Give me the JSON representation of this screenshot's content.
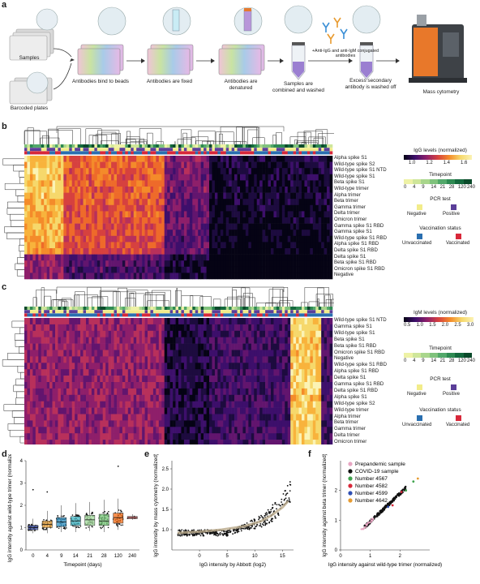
{
  "panel_labels": {
    "a": "a",
    "b": "b",
    "c": "c",
    "d": "d",
    "e": "e",
    "f": "f"
  },
  "workflow": {
    "samples": "Samples",
    "barcoded_plates": "Barcoded plates",
    "step1": "Antibodies bind to beads",
    "step2": "Antibodies are fixed",
    "step3": "Antibodies are denatured",
    "step4": "Samples are combined and washed",
    "reagent": "+Anti-IgG and anti-IgM conjugated antibodies",
    "step5": "Excess secondary antibody is washed off",
    "step6": "Mass cytometry"
  },
  "heatmap_b": {
    "annotation_rows": [
      "Timepoint",
      "PCR test",
      "Vaccination status"
    ],
    "rows": [
      "Alpha spike S1",
      "Wild-type spike S2",
      "Wild-type spike S1 NTD",
      "Wild-type spike S1",
      "Beta spike S1",
      "Wild-type trimer",
      "Alpha trimer",
      "Beta trimer",
      "Gamma trimer",
      "Delta trimer",
      "Omicron trimer",
      "Gamma spike S1 RBD",
      "Gamma spike S1",
      "Wild-type spike S1 RBD",
      "Alpha spike S1 RBD",
      "Delta spike S1 RBD",
      "Delta spike S1",
      "Beta spike S1 RBD",
      "Omicron spike S1 RBD",
      "Negative"
    ],
    "legend_title": "IgG levels (normalized)",
    "legend_ticks": [
      "1.0",
      "1.2",
      "1.4",
      "1.6"
    ]
  },
  "heatmap_c": {
    "annotation_rows": [
      "Timepoint",
      "PCR test",
      "Vaccination status"
    ],
    "rows": [
      "Wild-type spike S1 NTD",
      "Gamma spike S1",
      "Wild-type spike S1",
      "Beta spike S1",
      "Beta spike S1 RBD",
      "Omicron spike S1 RBD",
      "Negative",
      "Wild-type spike S1 RBD",
      "Alpha spike S1 RBD",
      "Delta spike S1",
      "Gamma spike S1 RBD",
      "Delta spike S1 RBD",
      "Alpha spike S1",
      "Wild-type spike S2",
      "Wild-type trimer",
      "Alpha trimer",
      "Beta trimer",
      "Gamma trimer",
      "Delta trimer",
      "Omicron trimer"
    ],
    "legend_title": "IgM levels (normalized)",
    "legend_ticks": [
      "0.5",
      "1.0",
      "1.5",
      "2.0",
      "2.5",
      "3.0"
    ]
  },
  "legends": {
    "timepoint_title": "Timepoint",
    "timepoint_ticks": [
      "0",
      "4",
      "9",
      "14",
      "21",
      "28",
      "120",
      "240"
    ],
    "timepoint_colors": [
      "#eef2a6",
      "#cfe69a",
      "#a9d68c",
      "#7fc27c",
      "#52a86a",
      "#2e8a52",
      "#14693d",
      "#0a4a2a"
    ],
    "pcr_title": "PCR test",
    "pcr_negative": "Negative",
    "pcr_positive": "Positive",
    "pcr_negative_color": "#f2ec8a",
    "pcr_positive_color": "#5b3f99",
    "vacc_title": "Vaccination status",
    "vacc_unvaccinated": "Unvaccinated",
    "vacc_vaccinated": "Vaccinated",
    "vacc_unvaccinated_color": "#2a6fb0",
    "vacc_vaccinated_color": "#d8283a"
  },
  "chart_data": [
    {
      "type": "box",
      "panel": "d",
      "xlabel": "Timepoint (days)",
      "ylabel": "IgG intensity against wild-type trimer (normalized)",
      "categories": [
        "0",
        "4",
        "9",
        "14",
        "21",
        "28",
        "120",
        "240"
      ],
      "medians": [
        1.0,
        1.15,
        1.25,
        1.3,
        1.35,
        1.3,
        1.45,
        1.45
      ],
      "q1": [
        0.9,
        1.0,
        1.05,
        1.1,
        1.1,
        1.1,
        1.2,
        1.4
      ],
      "q3": [
        1.1,
        1.3,
        1.45,
        1.5,
        1.55,
        1.6,
        1.65,
        1.5
      ],
      "whisker_low": [
        0.75,
        0.75,
        0.8,
        0.8,
        0.85,
        0.8,
        0.9,
        1.35
      ],
      "whisker_high": [
        1.4,
        1.75,
        2.0,
        2.1,
        2.15,
        2.25,
        2.3,
        1.6
      ],
      "colors": [
        "#3d4fa0",
        "#e8a33d",
        "#2b8cbe",
        "#41b6c4",
        "#a1d99b",
        "#74c476",
        "#f16913",
        "#d95f5f"
      ],
      "ylim": [
        0,
        4
      ],
      "yticks": [
        "0",
        "1",
        "2",
        "3",
        "4"
      ]
    },
    {
      "type": "scatter",
      "panel": "e",
      "xlabel": "IgG intensity by Abbott (log2)",
      "ylabel": "IgG intensity by mass cytometry (normalized)",
      "xlim": [
        -5,
        17
      ],
      "ylim": [
        0.5,
        2.7
      ],
      "xticks": [
        "0",
        "5",
        "10",
        "15"
      ],
      "yticks": [
        "1.0",
        "1.5",
        "2.0",
        "2.5"
      ],
      "trend": [
        [
          -4,
          0.92
        ],
        [
          0,
          0.95
        ],
        [
          4,
          1.0
        ],
        [
          8,
          1.08
        ],
        [
          11,
          1.2
        ],
        [
          13,
          1.35
        ],
        [
          15,
          1.55
        ],
        [
          16,
          1.7
        ]
      ]
    },
    {
      "type": "scatter",
      "panel": "f",
      "xlabel": "IgG intensity against wild-type trimer (normalized)",
      "ylabel": "IgG intensity against beta trimer (normalized)",
      "xlim": [
        0,
        3
      ],
      "ylim": [
        0,
        3
      ],
      "xticks": [
        "0",
        "1",
        "2"
      ],
      "yticks": [
        "0",
        "1",
        "2"
      ],
      "series": [
        {
          "name": "Prepandemic sample",
          "color": "#e7a6c2"
        },
        {
          "name": "COVID-19 sample",
          "color": "#111111"
        },
        {
          "name": "Number 4567",
          "color": "#3fa34d"
        },
        {
          "name": "Number 4582",
          "color": "#d8283a"
        },
        {
          "name": "Number 4599",
          "color": "#2f4fb3"
        },
        {
          "name": "Number 4642",
          "color": "#e69b32"
        }
      ]
    }
  ]
}
